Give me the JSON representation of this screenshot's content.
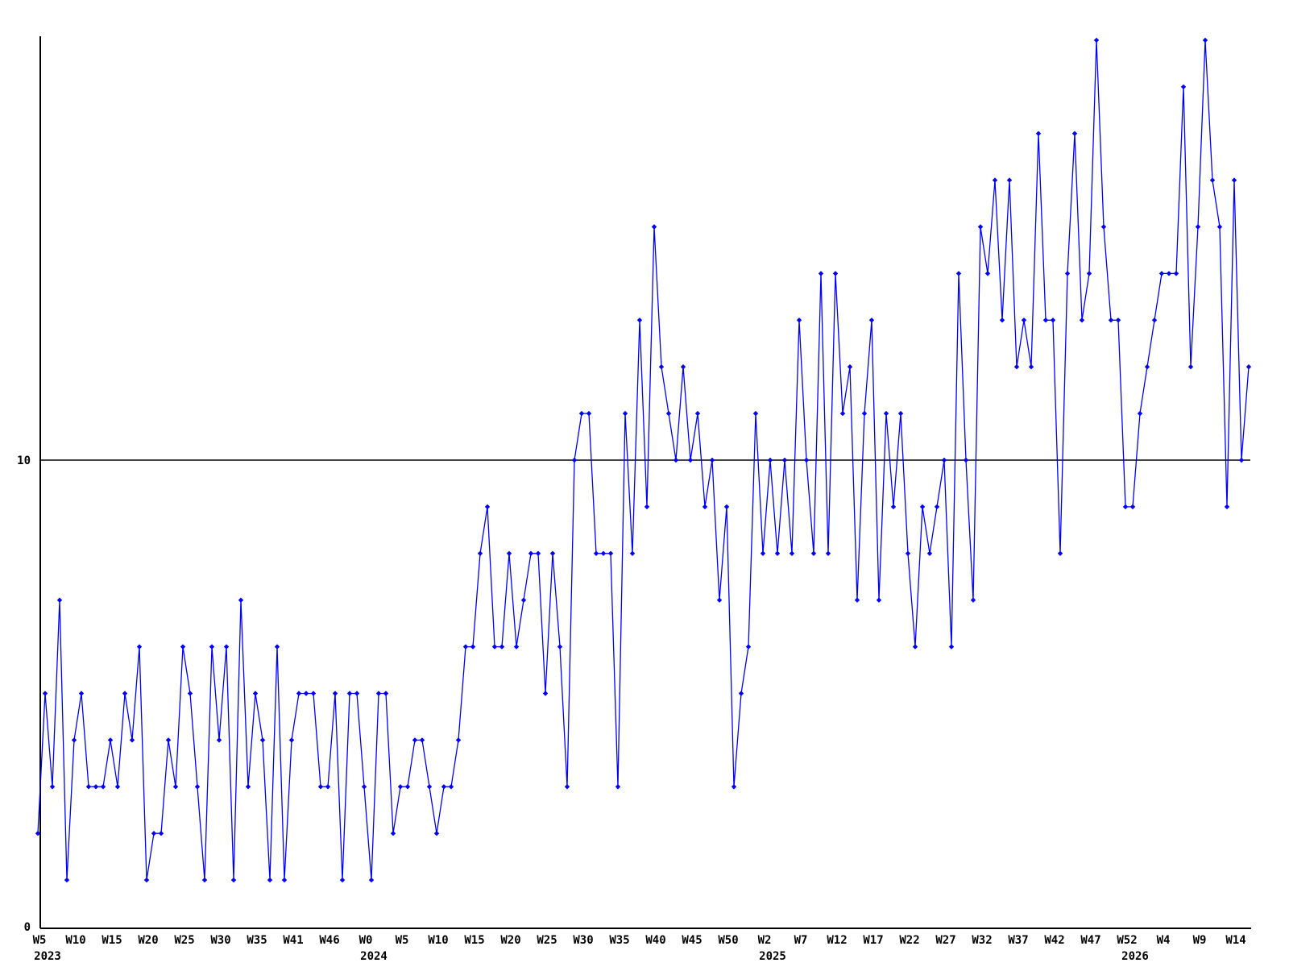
{
  "chart_data": {
    "type": "line",
    "title": "",
    "xlabel": "",
    "ylabel": "",
    "grid": "single horizontal reference line at y=10",
    "legend_position": "none",
    "series_color": "#0000ff",
    "axis_color": "#000000",
    "background_color": "#ffffff",
    "ylim": [
      0,
      19.2
    ],
    "y_axis_ticks": [
      {
        "value": 0,
        "label": "0"
      },
      {
        "value": 10,
        "label": "10"
      }
    ],
    "reference_line_value": 10,
    "tick_every_n_points": 5,
    "x_tick_labels": [
      "W5",
      "W10",
      "W15",
      "W20",
      "W25",
      "W30",
      "W35",
      "W41",
      "W46",
      "W0",
      "W5",
      "W10",
      "W15",
      "W20",
      "W25",
      "W30",
      "W35",
      "W40",
      "W45",
      "W50",
      "W2",
      "W7",
      "W12",
      "W17",
      "W22",
      "W27",
      "W32",
      "W37",
      "W42",
      "W47",
      "W52",
      "W4",
      "W9",
      "W14"
    ],
    "year_labels": [
      {
        "label": "2023",
        "tick_index": 0
      },
      {
        "label": "2024",
        "tick_index": 9
      },
      {
        "label": "2025",
        "tick_index": 20
      },
      {
        "label": "2026",
        "tick_index": 30
      }
    ],
    "values": [
      2,
      5,
      3,
      7,
      1,
      4,
      5,
      3,
      3,
      3,
      4,
      3,
      5,
      4,
      6,
      1,
      2,
      2,
      4,
      3,
      6,
      5,
      3,
      1,
      6,
      4,
      6,
      1,
      7,
      3,
      5,
      4,
      1,
      6,
      1,
      4,
      5,
      5,
      5,
      3,
      3,
      5,
      1,
      5,
      5,
      3,
      1,
      5,
      5,
      2,
      3,
      3,
      4,
      4,
      3,
      2,
      3,
      3,
      4,
      6,
      6,
      8,
      9,
      6,
      6,
      8,
      6,
      7,
      8,
      8,
      5,
      8,
      6,
      3,
      10,
      11,
      11,
      8,
      8,
      8,
      3,
      11,
      8,
      13,
      9,
      15,
      12,
      11,
      10,
      12,
      10,
      11,
      9,
      10,
      7,
      9,
      3,
      5,
      6,
      11,
      8,
      10,
      8,
      10,
      8,
      13,
      10,
      8,
      14,
      8,
      14,
      11,
      12,
      7,
      11,
      13,
      7,
      11,
      9,
      11,
      8,
      6,
      9,
      8,
      9,
      10,
      6,
      14,
      10,
      7,
      15,
      14,
      16,
      13,
      16,
      12,
      13,
      12,
      17,
      13,
      13,
      8,
      14,
      17,
      13,
      14,
      19,
      15,
      13,
      13,
      9,
      9,
      11,
      12,
      13,
      14,
      14,
      14,
      18,
      12,
      15,
      19,
      16,
      15,
      9,
      16,
      10,
      12
    ]
  }
}
